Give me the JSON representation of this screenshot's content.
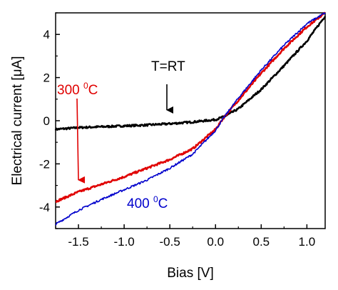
{
  "chart_data": {
    "type": "line",
    "title": "",
    "xlabel": "Bias [V]",
    "ylabel": "Electrical current [μA]",
    "xlim": [
      -1.75,
      1.2
    ],
    "ylim": [
      -5,
      5
    ],
    "xticks": [
      -1.5,
      -1.0,
      -0.5,
      0.0,
      0.5,
      1.0
    ],
    "xtick_labels": [
      "-1.5",
      "-1.0",
      "-0.5",
      "0.0",
      "0.5",
      "1.0"
    ],
    "yticks": [
      -4,
      -2,
      0,
      2,
      4
    ],
    "ytick_labels": [
      "-4",
      "-2",
      "0",
      "2",
      "4"
    ],
    "grid": false,
    "legend": "none",
    "series": [
      {
        "color": "#000000",
        "x": [
          -1.75,
          -1.5,
          -1.25,
          -1.0,
          -0.75,
          -0.5,
          -0.25,
          0.0,
          0.1,
          0.25,
          0.5,
          0.75,
          1.0,
          1.2
        ],
        "y": [
          -0.4,
          -0.32,
          -0.28,
          -0.24,
          -0.2,
          -0.14,
          -0.06,
          0.05,
          0.2,
          0.55,
          1.45,
          2.55,
          3.7,
          4.85
        ]
      },
      {
        "color": "#e00000",
        "x": [
          -1.75,
          -1.5,
          -1.25,
          -1.0,
          -0.75,
          -0.5,
          -0.25,
          0.0,
          0.1,
          0.25,
          0.5,
          0.75,
          1.0,
          1.2
        ],
        "y": [
          -3.75,
          -3.3,
          -2.95,
          -2.6,
          -2.2,
          -1.8,
          -1.3,
          -0.4,
          0.2,
          0.95,
          2.2,
          3.35,
          4.35,
          5.0
        ]
      },
      {
        "color": "#0000cc",
        "x": [
          -1.75,
          -1.5,
          -1.25,
          -1.0,
          -0.75,
          -0.5,
          -0.25,
          0.0,
          0.1,
          0.25,
          0.5,
          0.75,
          1.0,
          1.2
        ],
        "y": [
          -4.8,
          -4.15,
          -3.65,
          -3.2,
          -2.75,
          -2.2,
          -1.55,
          -0.45,
          0.2,
          1.05,
          2.35,
          3.5,
          4.5,
          5.0
        ]
      }
    ],
    "annotations": [
      {
        "text": "T=RT",
        "color": "#000000",
        "arrow_to": [
          -0.52,
          -0.1
        ]
      },
      {
        "text_main": "300 ",
        "text_sup": "0",
        "text_tail": "C",
        "color": "#e00000",
        "arrow_to": [
          -1.48,
          -3.5
        ]
      },
      {
        "text_main": "400 ",
        "text_sup": "0",
        "text_tail": "C",
        "color": "#0000cc"
      }
    ]
  }
}
